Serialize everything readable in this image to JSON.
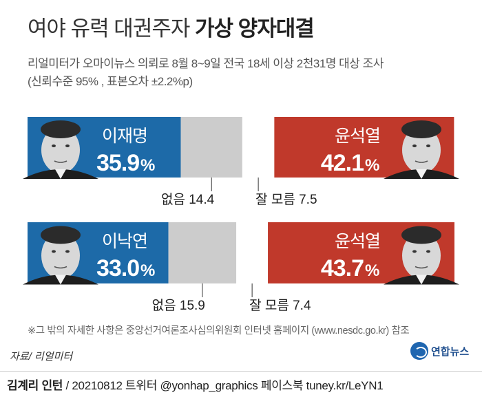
{
  "header": {
    "title_light": "여야 유력 대권주자",
    "title_bold": "가상 양자대결",
    "subtitle": "리얼미터가 오마이뉴스 의뢰로 8월 8~9일 전국 18세 이상 2천31명 대상 조사",
    "subtitle2": "(신뢰수준 95% , 표본오차 ±2.2%p)"
  },
  "chart_data": {
    "type": "bar",
    "stacked": true,
    "orientation": "horizontal",
    "unit": "%",
    "matchups": [
      {
        "left": {
          "name": "이재명",
          "value": 35.9,
          "label": "35.9%",
          "color": "#1d6aa8"
        },
        "none": {
          "label": "없음",
          "value": 14.4,
          "color": "#cccccc"
        },
        "dont_know": {
          "label": "잘 모름",
          "value": 7.5,
          "color": "#ffffff"
        },
        "right": {
          "name": "윤석열",
          "value": 42.1,
          "label": "42.1%",
          "color": "#c0392b"
        }
      },
      {
        "left": {
          "name": "이낙연",
          "value": 33.0,
          "label": "33.0%",
          "color": "#1d6aa8"
        },
        "none": {
          "label": "없음",
          "value": 15.9,
          "color": "#cccccc"
        },
        "dont_know": {
          "label": "잘 모름",
          "value": 7.4,
          "color": "#ffffff"
        },
        "right": {
          "name": "윤석열",
          "value": 43.7,
          "label": "43.7%",
          "color": "#c0392b"
        }
      }
    ]
  },
  "footnote": "※그 밖의 자세한 사항은 중앙선거여론조사심의위원회 인터넷 홈페이지 (www.nesdc.go.kr) 참조",
  "source": "자료/ 리얼미터",
  "logo": {
    "text": "연합뉴스",
    "icon": "yonhap-logo-icon"
  },
  "credit": {
    "author": "김계리 인턴",
    "rest": " / 20210812 트위터 @yonhap_graphics  페이스북 tuney.kr/LeYN1"
  }
}
